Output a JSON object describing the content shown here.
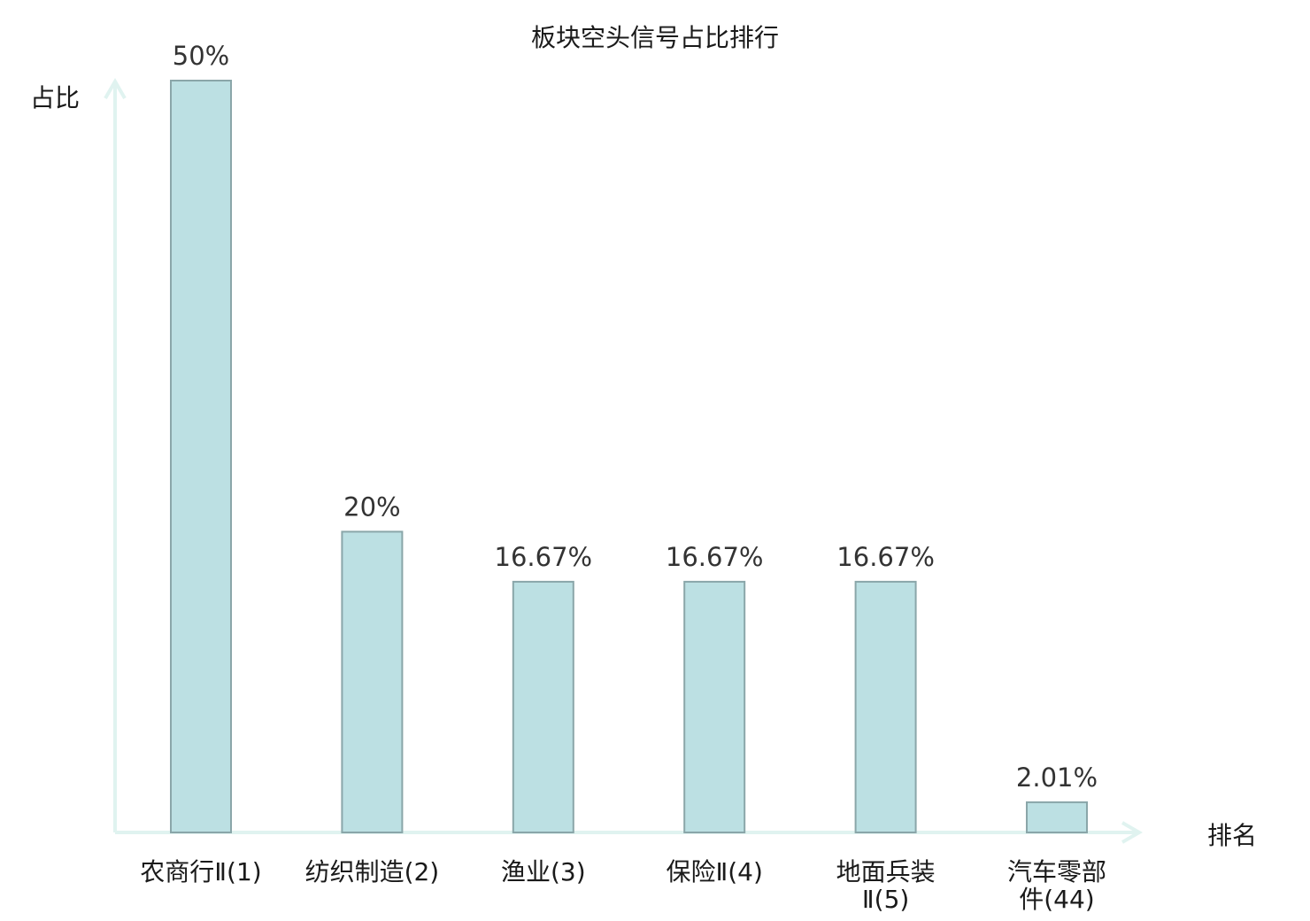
{
  "chart_data": {
    "type": "bar",
    "title": "板块空头信号占比排行",
    "ylabel": "占比",
    "xlabel": "排名",
    "ylim": [
      0,
      50
    ],
    "grid": false,
    "categories": [
      {
        "lines": [
          "农商行Ⅱ(1)"
        ],
        "highlight": false
      },
      {
        "lines": [
          "纺织制造(2)"
        ],
        "highlight": false
      },
      {
        "lines": [
          "渔业(3)"
        ],
        "highlight": false
      },
      {
        "lines": [
          "保险Ⅱ(4)"
        ],
        "highlight": false
      },
      {
        "lines": [
          "地面兵装",
          "Ⅱ(5)"
        ],
        "highlight": false
      },
      {
        "lines": [
          "汽车零部",
          "件(44)"
        ],
        "highlight": true
      }
    ],
    "values": [
      50,
      20,
      16.67,
      16.67,
      16.67,
      2.01
    ],
    "value_labels": [
      "50%",
      "20%",
      "16.67%",
      "16.67%",
      "16.67%",
      "2.01%"
    ],
    "colors": {
      "bar_fill": "#bce0e3",
      "bar_stroke": "#8aa6a9",
      "axis": "#e0f3f0",
      "text": "#1a1a1a",
      "highlight_text": "#e8110f"
    }
  }
}
